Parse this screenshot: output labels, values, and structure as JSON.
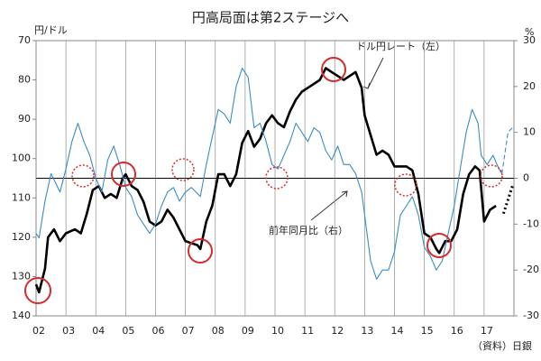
{
  "chart_data": {
    "type": "line",
    "title": "円高局面は第2ステージへ",
    "y_label": "円/ドル",
    "y2_label": "%",
    "source": "（資料）日銀",
    "annotations": [
      "ドル円レート（左）",
      "前年同月比（右）"
    ],
    "xlim": [
      2002,
      2018
    ],
    "xticks": [
      {
        "value": 2002,
        "label": "02"
      },
      {
        "value": 2003,
        "label": "03"
      },
      {
        "value": 2004,
        "label": "04"
      },
      {
        "value": 2005,
        "label": "05"
      },
      {
        "value": 2006,
        "label": "06"
      },
      {
        "value": 2007,
        "label": "07"
      },
      {
        "value": 2008,
        "label": "08"
      },
      {
        "value": 2009,
        "label": "09"
      },
      {
        "value": 2010,
        "label": "10"
      },
      {
        "value": 2011,
        "label": "11"
      },
      {
        "value": 2012,
        "label": "12"
      },
      {
        "value": 2013,
        "label": "13"
      },
      {
        "value": 2014,
        "label": "14"
      },
      {
        "value": 2015,
        "label": "15"
      },
      {
        "value": 2016,
        "label": "16"
      },
      {
        "value": 2017,
        "label": "17"
      }
    ],
    "ylim": [
      140,
      70
    ],
    "yticks": [
      70,
      80,
      90,
      100,
      110,
      120,
      130,
      140
    ],
    "y2lim": [
      -30,
      30
    ],
    "y2ticks": [
      30,
      20,
      10,
      0,
      -10,
      -20,
      -30
    ],
    "grid": true,
    "series": [
      {
        "color": "#000000",
        "style": "solid",
        "x": [
          2002.0,
          2002.1,
          2002.3,
          2002.4,
          2002.6,
          2002.8,
          2003.0,
          2003.3,
          2003.5,
          2003.7,
          2003.9,
          2004.1,
          2004.3,
          2004.5,
          2004.7,
          2004.9,
          2005.0,
          2005.2,
          2005.4,
          2005.6,
          2005.8,
          2006.0,
          2006.2,
          2006.4,
          2006.6,
          2006.8,
          2007.0,
          2007.4,
          2007.5,
          2007.7,
          2007.9,
          2008.1,
          2008.3,
          2008.5,
          2008.7,
          2008.9,
          2009.1,
          2009.3,
          2009.5,
          2009.7,
          2009.9,
          2010.1,
          2010.3,
          2010.5,
          2010.7,
          2010.9,
          2011.1,
          2011.3,
          2011.5,
          2011.7,
          2011.9,
          2012.1,
          2012.3,
          2012.5,
          2012.7,
          2012.9,
          2013.0,
          2013.2,
          2013.4,
          2013.6,
          2013.8,
          2014.0,
          2014.2,
          2014.4,
          2014.6,
          2014.8,
          2015.0,
          2015.2,
          2015.4,
          2015.5,
          2015.7,
          2015.9,
          2016.1,
          2016.3,
          2016.5,
          2016.7,
          2016.85,
          2017.0,
          2017.2,
          2017.4
        ],
        "values": [
          132,
          134,
          128,
          120,
          118,
          121,
          119,
          118,
          119,
          114,
          108,
          107,
          110,
          109,
          110,
          105,
          104,
          107,
          108,
          111,
          116,
          117,
          116,
          113,
          115,
          118,
          121,
          122,
          123,
          116,
          112,
          104,
          104,
          107,
          104,
          96,
          93,
          97,
          95,
          91,
          89,
          91,
          92,
          88,
          85,
          83,
          82,
          81,
          80,
          77,
          78,
          79,
          80,
          79,
          78,
          82,
          89,
          94,
          99,
          98,
          99,
          102,
          102,
          102,
          103,
          109,
          119,
          120,
          123,
          124,
          121,
          121,
          118,
          109,
          104,
          102,
          103,
          116,
          113,
          112
        ]
      },
      {
        "color": "#000000",
        "style": "dotted",
        "x": [
          2017.65,
          2017.95
        ],
        "values": [
          114,
          107
        ]
      },
      {
        "color": "#3a8cc4",
        "style": "solid",
        "axis": "y2",
        "x": [
          2002.0,
          2002.1,
          2002.3,
          2002.5,
          2002.8,
          2003.0,
          2003.2,
          2003.4,
          2003.6,
          2003.8,
          2004.0,
          2004.2,
          2004.4,
          2004.6,
          2004.8,
          2005.0,
          2005.2,
          2005.4,
          2005.6,
          2005.8,
          2006.0,
          2006.2,
          2006.4,
          2006.6,
          2006.8,
          2007.0,
          2007.2,
          2007.5,
          2007.7,
          2007.9,
          2008.1,
          2008.3,
          2008.5,
          2008.7,
          2008.9,
          2009.1,
          2009.3,
          2009.5,
          2009.7,
          2009.9,
          2010.1,
          2010.3,
          2010.5,
          2010.7,
          2010.9,
          2011.1,
          2011.3,
          2011.5,
          2011.7,
          2011.9,
          2012.1,
          2012.3,
          2012.5,
          2012.7,
          2012.9,
          2013.0,
          2013.2,
          2013.4,
          2013.6,
          2013.8,
          2014.0,
          2014.2,
          2014.4,
          2014.6,
          2014.8,
          2015.0,
          2015.2,
          2015.4,
          2015.6,
          2015.8,
          2016.0,
          2016.2,
          2016.4,
          2016.6,
          2016.8,
          2016.9,
          2017.1,
          2017.3,
          2017.5,
          2017.6
        ],
        "values": [
          -12,
          -13,
          -5,
          1,
          -3,
          2,
          8,
          12,
          8,
          5,
          0,
          -3,
          4,
          7,
          3,
          -2,
          -4,
          -8,
          -10,
          -12,
          -10,
          -6,
          -3,
          -2,
          -5,
          -3,
          -2,
          -4,
          3,
          9,
          15,
          14,
          12,
          20,
          24,
          22,
          11,
          12,
          8,
          3,
          2,
          5,
          8,
          12,
          10,
          8,
          11,
          10,
          6,
          4,
          7,
          3,
          3,
          1,
          -3,
          -8,
          -18,
          -22,
          -20,
          -20,
          -16,
          -8,
          -6,
          -4,
          -8,
          -15,
          -17,
          -20,
          -18,
          -12,
          -6,
          2,
          10,
          15,
          12,
          5,
          3,
          5,
          2,
          1
        ]
      },
      {
        "color": "#3a8cc4",
        "style": "dashed",
        "axis": "y2",
        "x": [
          2017.6,
          2017.8,
          2017.95
        ],
        "values": [
          1,
          10,
          11
        ]
      }
    ]
  }
}
